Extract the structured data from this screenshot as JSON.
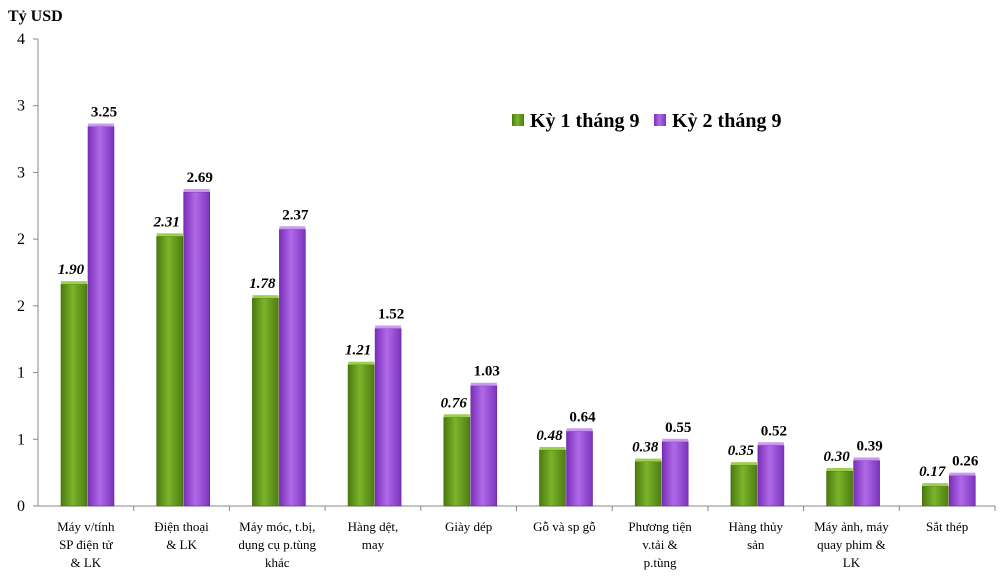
{
  "chart_data": {
    "type": "bar",
    "ylabel": "Tỷ USD",
    "ylim": [
      0,
      4
    ],
    "y_tick_labels": [
      "0",
      "1",
      "1",
      "2",
      "2",
      "3",
      "3",
      "4"
    ],
    "legend_position": "top-right",
    "categories": [
      [
        "Máy v/tính",
        "SP điện tử",
        "& LK"
      ],
      [
        "Điện thoại",
        "& LK"
      ],
      [
        "Máy móc, t.bị,",
        "dụng cụ p.tùng",
        "khác"
      ],
      [
        "Hàng dệt,",
        "may"
      ],
      [
        "Giày dép"
      ],
      [
        "Gỗ và sp gỗ"
      ],
      [
        "Phương tiện",
        "v.tải &",
        "p.tùng"
      ],
      [
        "Hàng thủy",
        "sản"
      ],
      [
        "Máy ảnh, máy",
        "quay phim &",
        "LK"
      ],
      [
        "Sắt thép"
      ]
    ],
    "series": [
      {
        "name": "Kỳ 1 tháng 9",
        "color": "#6a9e1f",
        "values": [
          1.9,
          2.31,
          1.78,
          1.21,
          0.76,
          0.48,
          0.38,
          0.35,
          0.3,
          0.17
        ],
        "labels": [
          "1.90",
          "2.31",
          "1.78",
          "1.21",
          "0.76",
          "0.48",
          "0.38",
          "0.35",
          "0.30",
          "0.17"
        ]
      },
      {
        "name": "Kỳ 2 tháng 9",
        "color": "#9b4fd6",
        "values": [
          3.25,
          2.69,
          2.37,
          1.52,
          1.03,
          0.64,
          0.55,
          0.52,
          0.39,
          0.26
        ],
        "labels": [
          "3.25",
          "2.69",
          "2.37",
          "1.52",
          "1.03",
          "0.64",
          "0.55",
          "0.52",
          "0.39",
          "0.26"
        ]
      }
    ]
  }
}
